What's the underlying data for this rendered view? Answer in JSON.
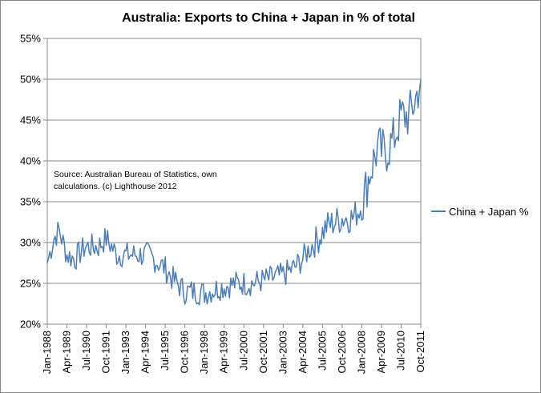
{
  "chart_data": {
    "type": "line",
    "title": "Australia: Exports to China + Japan in % of total",
    "xlabel": "",
    "ylabel": "",
    "ylim": [
      20,
      55
    ],
    "y_ticks": [
      "20%",
      "25%",
      "30%",
      "35%",
      "40%",
      "45%",
      "50%",
      "55%"
    ],
    "x_tick_labels": [
      "Jan-1988",
      "Apr-1989",
      "Jul-1990",
      "Oct-1991",
      "Jan-1993",
      "Apr-1994",
      "Jul-1995",
      "Oct-1996",
      "Jan-1998",
      "Apr-1999",
      "Jul-2000",
      "Oct-2001",
      "Jan-2003",
      "Apr-2004",
      "Jul-2005",
      "Oct-2006",
      "Jan-2008",
      "Apr-2009",
      "Jul-2010",
      "Oct-2011"
    ],
    "x_start": "Jan-1988",
    "x_end": "Oct-2011",
    "grid": "horizontal",
    "legend_position": "right",
    "series": [
      {
        "name": "China + Japan %",
        "color": "#4a7ebb",
        "anchors": [
          {
            "date": "1988-01",
            "value": 27.5
          },
          {
            "date": "1988-06",
            "value": 30.5
          },
          {
            "date": "1988-10",
            "value": 31.5
          },
          {
            "date": "1989-04",
            "value": 28.5
          },
          {
            "date": "1989-10",
            "value": 28.0
          },
          {
            "date": "1990-06",
            "value": 29.5
          },
          {
            "date": "1991-04",
            "value": 29.5
          },
          {
            "date": "1991-10",
            "value": 30.5
          },
          {
            "date": "1992-06",
            "value": 28.5
          },
          {
            "date": "1993-06",
            "value": 28.5
          },
          {
            "date": "1994-06",
            "value": 28.5
          },
          {
            "date": "1995-06",
            "value": 27.0
          },
          {
            "date": "1996-01",
            "value": 25.5
          },
          {
            "date": "1996-10",
            "value": 24.0
          },
          {
            "date": "1997-06",
            "value": 24.0
          },
          {
            "date": "1998-01",
            "value": 23.8
          },
          {
            "date": "1999-01",
            "value": 24.5
          },
          {
            "date": "2000-01",
            "value": 25.0
          },
          {
            "date": "2001-01",
            "value": 25.0
          },
          {
            "date": "2002-01",
            "value": 25.5
          },
          {
            "date": "2003-01",
            "value": 26.0
          },
          {
            "date": "2003-10",
            "value": 27.0
          },
          {
            "date": "2004-04",
            "value": 28.0
          },
          {
            "date": "2004-10",
            "value": 29.5
          },
          {
            "date": "2005-04",
            "value": 30.5
          },
          {
            "date": "2005-10",
            "value": 32.0
          },
          {
            "date": "2006-10",
            "value": 33.0
          },
          {
            "date": "2007-06",
            "value": 33.0
          },
          {
            "date": "2008-01",
            "value": 34.5
          },
          {
            "date": "2008-07",
            "value": 38.5
          },
          {
            "date": "2009-01",
            "value": 41.5
          },
          {
            "date": "2009-07",
            "value": 41.0
          },
          {
            "date": "2010-01",
            "value": 42.5
          },
          {
            "date": "2010-07",
            "value": 45.5
          },
          {
            "date": "2011-01",
            "value": 45.5
          },
          {
            "date": "2011-06",
            "value": 47.5
          },
          {
            "date": "2011-10",
            "value": 50.0
          }
        ]
      }
    ],
    "annotation": "Source: Australian Bureau of Statistics, own calculations. (c) Lighthouse 2012",
    "annotation_lines": [
      "Source: Australian Bureau of Statistics, own",
      "calculations. (c) Lighthouse 2012"
    ]
  }
}
